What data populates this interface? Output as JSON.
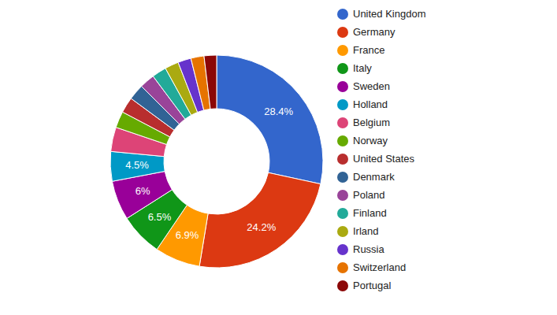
{
  "chart_data": {
    "type": "pie",
    "donut": true,
    "categories": [
      "United Kingdom",
      "Germany",
      "France",
      "Italy",
      "Sweden",
      "Holland",
      "Belgium",
      "Norway",
      "United States",
      "Denmark",
      "Poland",
      "Finland",
      "Irland",
      "Russia",
      "Switzerland",
      "Portugal"
    ],
    "values": [
      28.4,
      24.2,
      6.9,
      6.5,
      6,
      4.5,
      3.7,
      2.5,
      2.4,
      2.4,
      2.3,
      2.2,
      2.1,
      2.0,
      2.0,
      1.9
    ],
    "value_labels": [
      "28.4%",
      "24.2%",
      "6.9%",
      "6.5%",
      "6%",
      "4.5%",
      null,
      null,
      null,
      null,
      null,
      null,
      null,
      null,
      null,
      null
    ],
    "data_labels": true,
    "legend": "right",
    "colors": [
      "#3366cc",
      "#dc3912",
      "#ff9900",
      "#109618",
      "#990099",
      "#0099c6",
      "#dd4477",
      "#66aa00",
      "#b82e2e",
      "#316395",
      "#994499",
      "#22aa99",
      "#aaaa11",
      "#6633cc",
      "#e67300",
      "#8b0707"
    ]
  }
}
